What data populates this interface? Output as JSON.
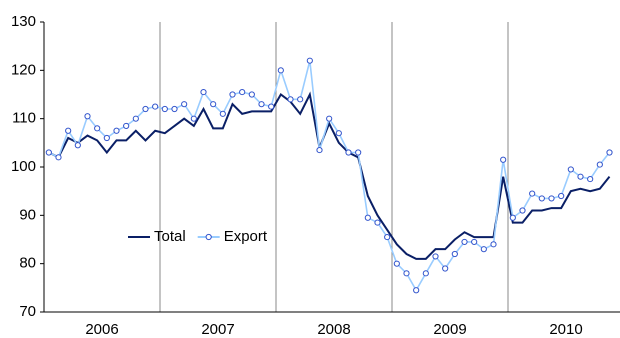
{
  "chart_data": {
    "type": "line",
    "categories": [
      null,
      null,
      null,
      null,
      null,
      null,
      "2006",
      null,
      null,
      null,
      null,
      null,
      null,
      null,
      null,
      null,
      null,
      null,
      "2007",
      null,
      null,
      null,
      null,
      null,
      null,
      null,
      null,
      null,
      null,
      null,
      "2008",
      null,
      null,
      null,
      null,
      null,
      null,
      null,
      null,
      null,
      null,
      null,
      "2009",
      null,
      null,
      null,
      null,
      null,
      null,
      null,
      null,
      null,
      null,
      null,
      "2010",
      null,
      null,
      null,
      null
    ],
    "series": [
      {
        "name": "Total",
        "color": "#0a1f66",
        "marker": false,
        "values": [
          103,
          102,
          106,
          105,
          106.5,
          105.5,
          103,
          105.5,
          105.5,
          107.5,
          105.5,
          107.5,
          107,
          108.5,
          110,
          108.5,
          112,
          108,
          108,
          113,
          111,
          111.5,
          111.5,
          111.5,
          115,
          113.5,
          111,
          115,
          104,
          109,
          105,
          103,
          102,
          94,
          90,
          87,
          84,
          82,
          81,
          81,
          83,
          83,
          85,
          86.5,
          85.5,
          85.5,
          85.5,
          98,
          88.5,
          88.5,
          91,
          91,
          91.5,
          91.5,
          95,
          95.5,
          95,
          95.5,
          98
        ]
      },
      {
        "name": "Export",
        "color": "#99ccff",
        "marker": true,
        "values": [
          103,
          102,
          107.5,
          104.5,
          110.5,
          108,
          106,
          107.5,
          108.5,
          110,
          112,
          112.5,
          112,
          112,
          113,
          110,
          115.5,
          113,
          111,
          115,
          115.5,
          115,
          113,
          112.5,
          120,
          114,
          114,
          122,
          103.5,
          110,
          107,
          103,
          103,
          89.5,
          88.5,
          85.5,
          80,
          78,
          74.5,
          78,
          81.5,
          79,
          82,
          84.5,
          84.5,
          83,
          84,
          101.5,
          89.5,
          91,
          94.5,
          93.5,
          93.5,
          94,
          99.5,
          98,
          97.5,
          100.5,
          103
        ]
      }
    ],
    "ylim": [
      70,
      130
    ],
    "yticks": [
      70,
      80,
      90,
      100,
      110,
      120,
      130
    ],
    "legend": "center-left"
  }
}
